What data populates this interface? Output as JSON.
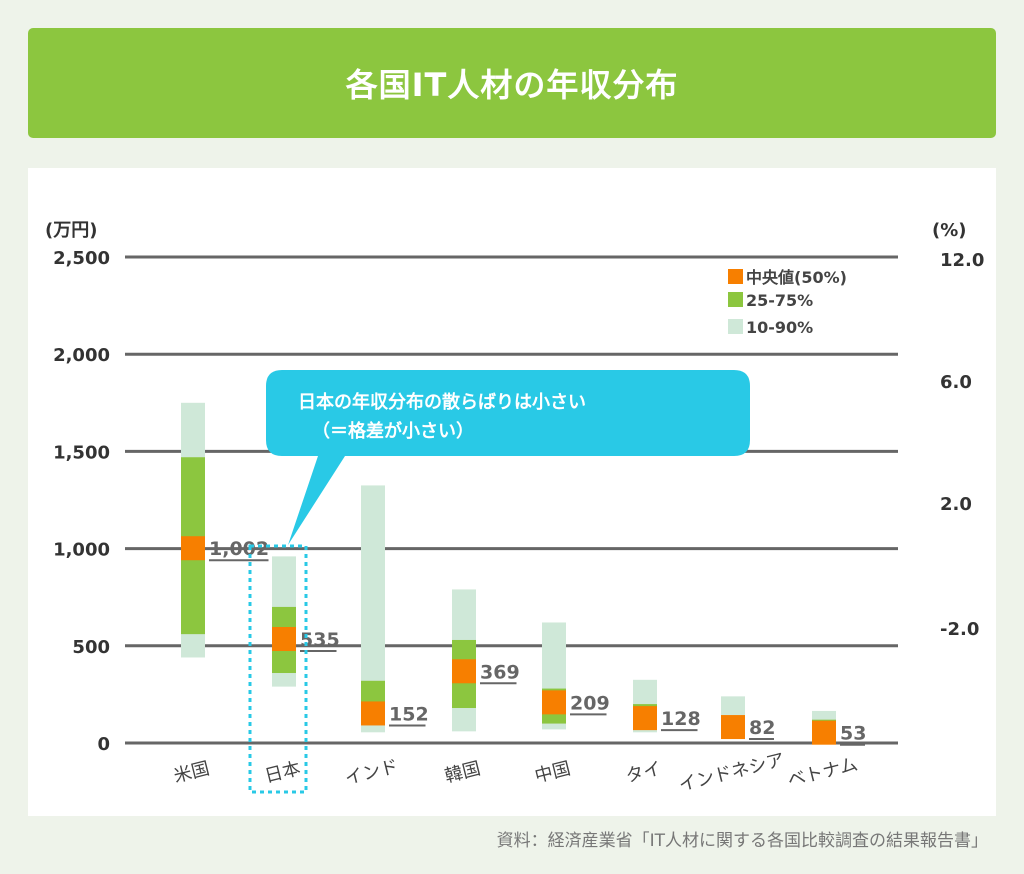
{
  "title": "各国IT人材の年収分布",
  "source": "資料：経済産業省「IT人材に関する各国比較調査の結果報告書」",
  "callout": {
    "line1": "日本の年収分布の散らばりは小さい",
    "line2": "（＝格差が小さい）"
  },
  "colors": {
    "banner": "#8cc63f",
    "median": "#f77f00",
    "p25_75": "#8cc63f",
    "p10_90": "#cfe8d8",
    "callout": "#29c9e6",
    "gridline": "#666666"
  },
  "chart_data": {
    "type": "box",
    "ylabel_left": "(万円)",
    "ylabel_right": "(%)",
    "ylim": [
      0,
      2500
    ],
    "yticks_left": [
      "2,500",
      "2,000",
      "1,500",
      "1,000",
      "500",
      "0"
    ],
    "yticks_left_values": [
      2500,
      2000,
      1500,
      1000,
      500,
      0
    ],
    "yticks_right": [
      "12.0",
      "6.0",
      "2.0",
      "-2.0"
    ],
    "grid": true,
    "legend_position": "top-right",
    "legend": [
      {
        "label": "中央値(50%)",
        "key": "median"
      },
      {
        "label": "25-75%",
        "key": "p25_75"
      },
      {
        "label": "10-90%",
        "key": "p10_90"
      }
    ],
    "categories": [
      "米国",
      "日本",
      "インド",
      "韓国",
      "中国",
      "タイ",
      "インドネシア",
      "ベトナム"
    ],
    "series": [
      {
        "country": "米国",
        "p10": 440,
        "p25": 560,
        "median": 1002,
        "p75": 1470,
        "p90": 1750,
        "median_label": "1,002"
      },
      {
        "country": "日本",
        "p10": 290,
        "p25": 360,
        "median": 535,
        "p75": 700,
        "p90": 960,
        "median_label": "535"
      },
      {
        "country": "インド",
        "p10": 55,
        "p25": 100,
        "median": 152,
        "p75": 320,
        "p90": 1325,
        "median_label": "152"
      },
      {
        "country": "韓国",
        "p10": 60,
        "p25": 180,
        "median": 369,
        "p75": 530,
        "p90": 790,
        "median_label": "369"
      },
      {
        "country": "中国",
        "p10": 70,
        "p25": 100,
        "median": 209,
        "p75": 280,
        "p90": 620,
        "median_label": "209"
      },
      {
        "country": "タイ",
        "p10": 55,
        "p25": 90,
        "median": 128,
        "p75": 200,
        "p90": 325,
        "median_label": "128"
      },
      {
        "country": "インドネシア",
        "p10": 30,
        "p25": 30,
        "median": 82,
        "p75": 130,
        "p90": 240,
        "median_label": "82"
      },
      {
        "country": "ベトナム",
        "p10": 30,
        "p25": 30,
        "median": 53,
        "p75": 120,
        "p90": 165,
        "median_label": "53"
      }
    ],
    "highlight_category": "日本"
  }
}
